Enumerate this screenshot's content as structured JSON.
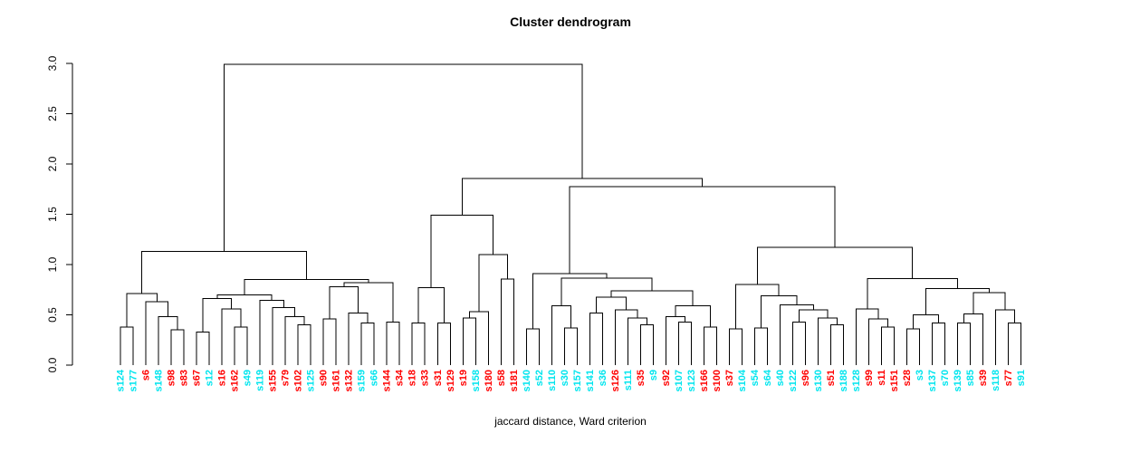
{
  "chart_data": {
    "type": "dendrogram",
    "title": "Cluster dendrogram",
    "xlabel": "jaccard distance, Ward criterion",
    "ylabel": "",
    "ylim": [
      0.0,
      3.0
    ],
    "y_ticks": [
      "0.0",
      "0.5",
      "1.0",
      "1.5",
      "2.0",
      "2.5",
      "3.0"
    ],
    "y_tick_values": [
      0.0,
      0.5,
      1.0,
      1.5,
      2.0,
      2.5,
      3.0
    ],
    "grid": false,
    "line_color": "#000000",
    "label_colors": {
      "cyan": "#00e5ee",
      "red": "#ff0000"
    },
    "leaves": [
      {
        "label": "s124",
        "color": "cyan"
      },
      {
        "label": "s177",
        "color": "cyan"
      },
      {
        "label": "s6",
        "color": "red"
      },
      {
        "label": "s148",
        "color": "cyan"
      },
      {
        "label": "s98",
        "color": "red"
      },
      {
        "label": "s83",
        "color": "red"
      },
      {
        "label": "s67",
        "color": "red"
      },
      {
        "label": "s12",
        "color": "cyan"
      },
      {
        "label": "s16",
        "color": "red"
      },
      {
        "label": "s162",
        "color": "red"
      },
      {
        "label": "s49",
        "color": "cyan"
      },
      {
        "label": "s119",
        "color": "cyan"
      },
      {
        "label": "s155",
        "color": "red"
      },
      {
        "label": "s79",
        "color": "red"
      },
      {
        "label": "s102",
        "color": "red"
      },
      {
        "label": "s125",
        "color": "cyan"
      },
      {
        "label": "s90",
        "color": "red"
      },
      {
        "label": "s161",
        "color": "red"
      },
      {
        "label": "s132",
        "color": "red"
      },
      {
        "label": "s159",
        "color": "cyan"
      },
      {
        "label": "s66",
        "color": "cyan"
      },
      {
        "label": "s144",
        "color": "red"
      },
      {
        "label": "s34",
        "color": "red"
      },
      {
        "label": "s18",
        "color": "red"
      },
      {
        "label": "s33",
        "color": "red"
      },
      {
        "label": "s31",
        "color": "red"
      },
      {
        "label": "s129",
        "color": "red"
      },
      {
        "label": "s19",
        "color": "red"
      },
      {
        "label": "s158",
        "color": "cyan"
      },
      {
        "label": "s180",
        "color": "red"
      },
      {
        "label": "s58",
        "color": "red"
      },
      {
        "label": "s181",
        "color": "red"
      },
      {
        "label": "s140",
        "color": "cyan"
      },
      {
        "label": "s52",
        "color": "cyan"
      },
      {
        "label": "s110",
        "color": "cyan"
      },
      {
        "label": "s30",
        "color": "cyan"
      },
      {
        "label": "s157",
        "color": "cyan"
      },
      {
        "label": "s141",
        "color": "cyan"
      },
      {
        "label": "s36",
        "color": "cyan"
      },
      {
        "label": "s126",
        "color": "red"
      },
      {
        "label": "s111",
        "color": "cyan"
      },
      {
        "label": "s35",
        "color": "red"
      },
      {
        "label": "s9",
        "color": "cyan"
      },
      {
        "label": "s92",
        "color": "red"
      },
      {
        "label": "s107",
        "color": "cyan"
      },
      {
        "label": "s123",
        "color": "cyan"
      },
      {
        "label": "s166",
        "color": "red"
      },
      {
        "label": "s100",
        "color": "red"
      },
      {
        "label": "s37",
        "color": "red"
      },
      {
        "label": "s104",
        "color": "cyan"
      },
      {
        "label": "s54",
        "color": "cyan"
      },
      {
        "label": "s64",
        "color": "cyan"
      },
      {
        "label": "s40",
        "color": "cyan"
      },
      {
        "label": "s122",
        "color": "cyan"
      },
      {
        "label": "s96",
        "color": "red"
      },
      {
        "label": "s130",
        "color": "cyan"
      },
      {
        "label": "s51",
        "color": "red"
      },
      {
        "label": "s188",
        "color": "cyan"
      },
      {
        "label": "s128",
        "color": "cyan"
      },
      {
        "label": "s99",
        "color": "red"
      },
      {
        "label": "s11",
        "color": "red"
      },
      {
        "label": "s151",
        "color": "red"
      },
      {
        "label": "s28",
        "color": "red"
      },
      {
        "label": "s3",
        "color": "cyan"
      },
      {
        "label": "s137",
        "color": "cyan"
      },
      {
        "label": "s70",
        "color": "cyan"
      },
      {
        "label": "s139",
        "color": "cyan"
      },
      {
        "label": "s85",
        "color": "cyan"
      },
      {
        "label": "s39",
        "color": "red"
      },
      {
        "label": "s118",
        "color": "cyan"
      },
      {
        "label": "s77",
        "color": "red"
      },
      {
        "label": "s91",
        "color": "cyan"
      }
    ],
    "tree": [
      2.99,
      [
        1.13,
        [
          0.71,
          [
            0.38,
            0,
            1
          ],
          [
            0.63,
            2,
            [
              0.48,
              3,
              [
                0.35,
                4,
                5
              ]
            ]
          ]
        ],
        [
          0.85,
          [
            0.7,
            [
              0.66,
              [
                0.33,
                6,
                7
              ],
              [
                0.56,
                8,
                [
                  0.38,
                  9,
                  10
                ]
              ]
            ],
            [
              0.645,
              11,
              [
                0.57,
                12,
                [
                  0.48,
                  13,
                  [
                    0.4,
                    14,
                    15
                  ]
                ]
              ]
            ]
          ],
          [
            0.82,
            [
              0.78,
              [
                0.46,
                16,
                17
              ],
              [
                0.52,
                18,
                [
                  0.42,
                  19,
                  20
                ]
              ]
            ],
            [
              0.43,
              21,
              22
            ]
          ]
        ]
      ],
      [
        1.856,
        [
          1.49,
          [
            0.77,
            [
              0.42,
              23,
              24
            ],
            [
              0.42,
              25,
              26
            ]
          ],
          [
            1.1,
            [
              0.53,
              [
                0.47,
                27,
                28
              ],
              29
            ],
            [
              0.855,
              30,
              31
            ]
          ]
        ],
        [
          1.775,
          [
            0.91,
            [
              0.36,
              32,
              33
            ],
            [
              0.865,
              [
                0.59,
                34,
                [
                  0.37,
                  35,
                  36
                ]
              ],
              [
                0.74,
                [
                  0.675,
                  [
                    0.52,
                    37,
                    38
                  ],
                  [
                    0.55,
                    39,
                    [
                      0.47,
                      40,
                      [
                        0.4,
                        41,
                        42
                      ]
                    ]
                  ]
                ],
                [
                  0.59,
                  [
                    0.48,
                    43,
                    [
                      0.43,
                      44,
                      45
                    ]
                  ],
                  [
                    0.38,
                    46,
                    47
                  ]
                ]
              ]
            ]
          ],
          [
            1.17,
            [
              0.8,
              [
                0.36,
                48,
                49
              ],
              [
                0.69,
                [
                  0.37,
                  50,
                  51
                ],
                [
                  0.6,
                  52,
                  [
                    0.55,
                    [
                      0.43,
                      53,
                      54
                    ],
                    [
                      0.47,
                      55,
                      [
                        0.4,
                        56,
                        57
                      ]
                    ]
                  ]
                ]
              ]
            ],
            [
              0.86,
              [
                0.56,
                58,
                [
                  0.46,
                  59,
                  [
                    0.38,
                    60,
                    61
                  ]
                ]
              ],
              [
                0.76,
                [
                  0.5,
                  [
                    0.36,
                    62,
                    63
                  ],
                  [
                    0.42,
                    64,
                    65
                  ]
                ],
                [
                  0.72,
                  [
                    0.51,
                    [
                      0.42,
                      66,
                      67
                    ],
                    68
                  ],
                  [
                    0.55,
                    69,
                    [
                      0.42,
                      70,
                      71
                    ]
                  ]
                ]
              ]
            ]
          ]
        ]
      ]
    ]
  }
}
